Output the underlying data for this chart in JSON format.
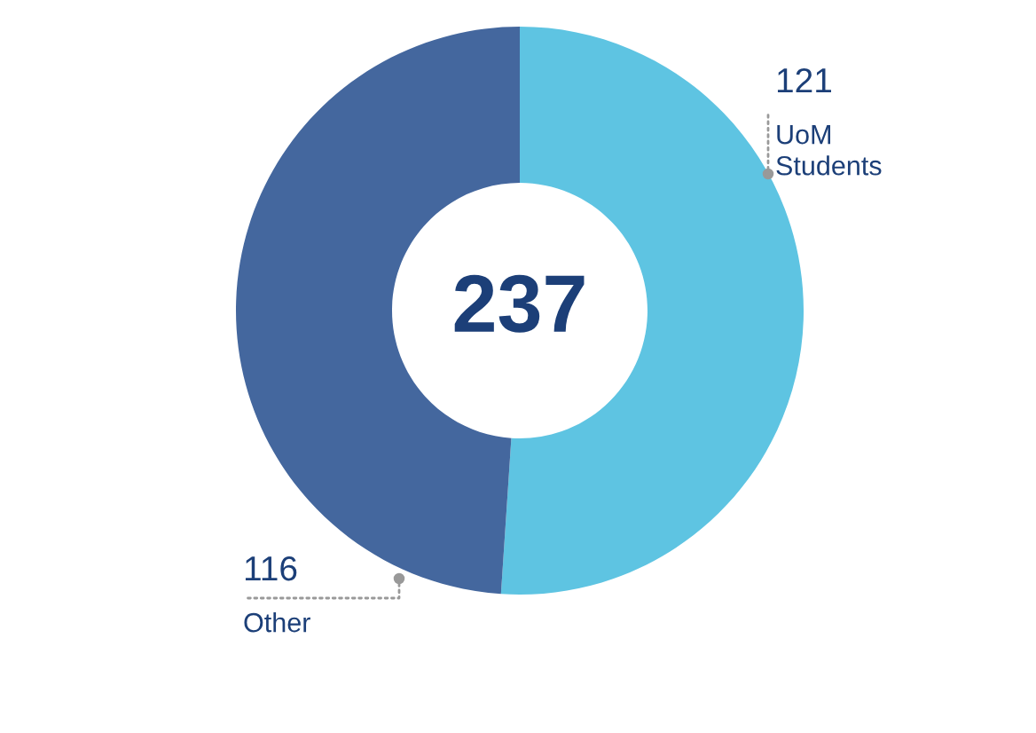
{
  "chart_data": {
    "type": "donut",
    "categories": [
      "UoM Students",
      "Other"
    ],
    "values": [
      121,
      116
    ],
    "colors": [
      "#5ec4e2",
      "#44679e"
    ],
    "data_labels": true,
    "annotations": [
      "237"
    ],
    "legend": false
  }
}
